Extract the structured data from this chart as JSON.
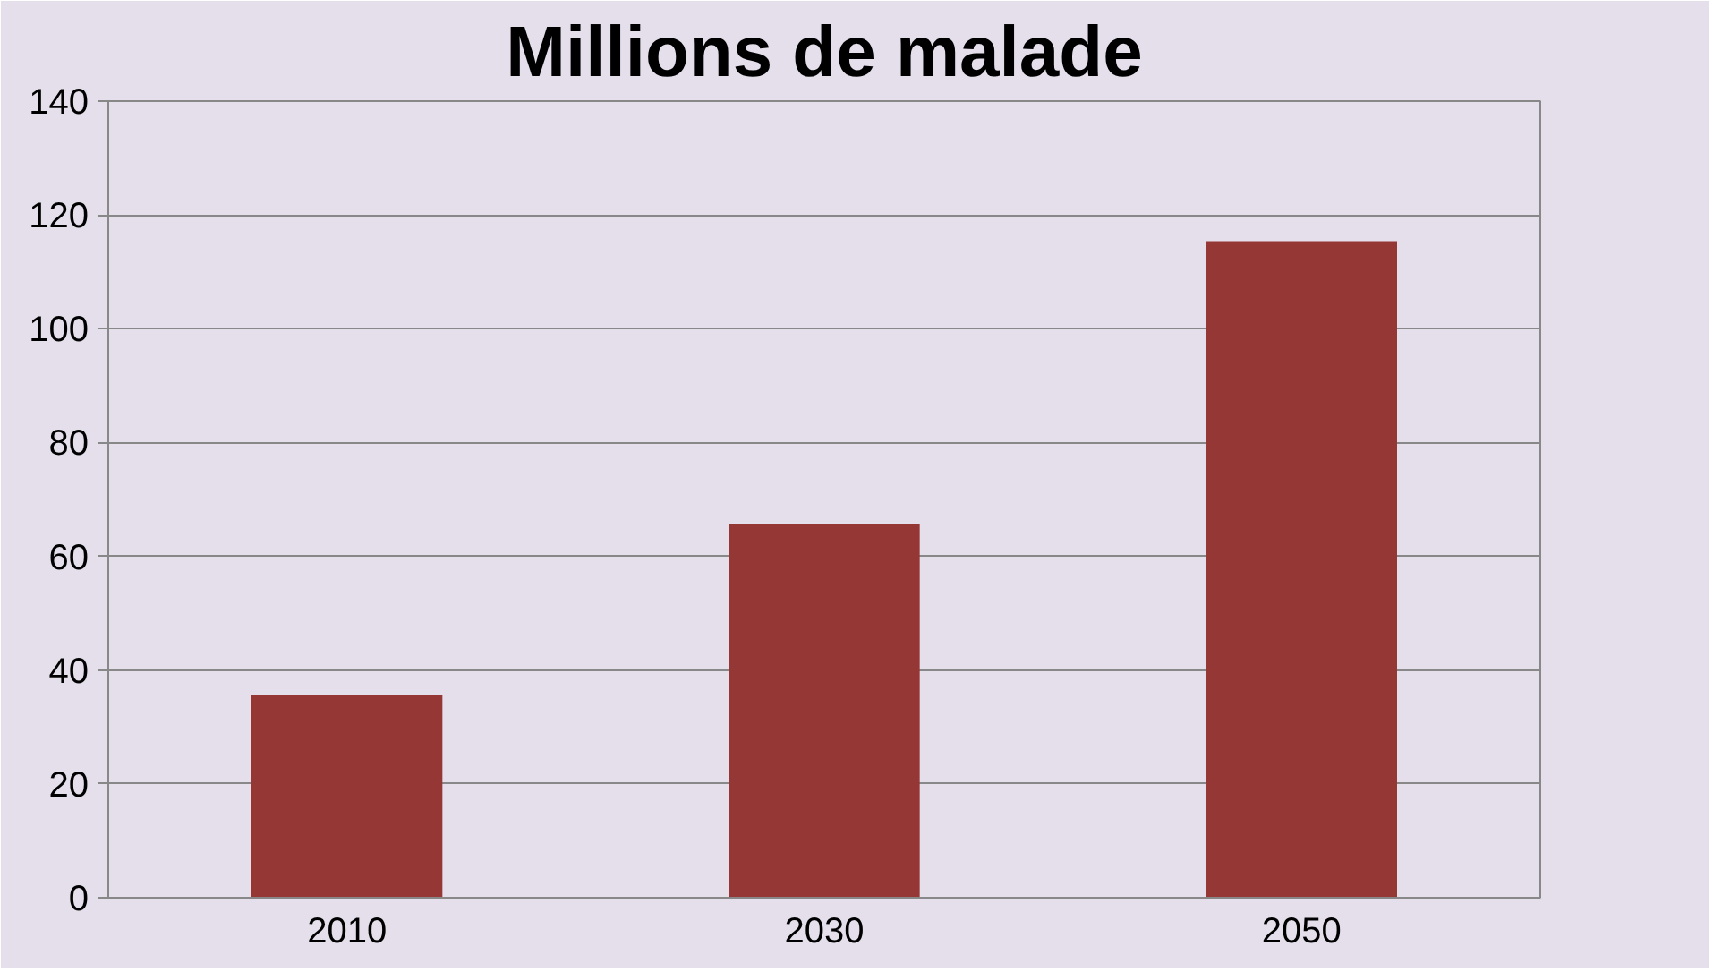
{
  "chart_data": {
    "type": "bar",
    "title": "Millions de malade",
    "categories": [
      "2010",
      "2030",
      "2050"
    ],
    "values": [
      35.6,
      65.7,
      115.4
    ],
    "color": "#953735",
    "ylim": [
      0,
      140
    ],
    "yticks": [
      0,
      20,
      40,
      60,
      80,
      100,
      120,
      140
    ],
    "grid": "y"
  }
}
